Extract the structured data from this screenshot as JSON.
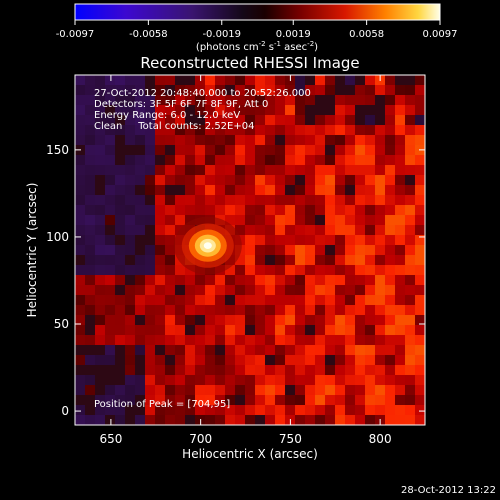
{
  "chart_data": {
    "type": "heatmap",
    "title": "Reconstructed RHESSI Image",
    "xlabel": "Heliocentric X (arcsec)",
    "ylabel": "Heliocentric Y (arcsec)",
    "xlim": [
      630,
      825
    ],
    "ylim": [
      -8,
      193
    ],
    "x_ticks": [
      "650",
      "700",
      "750",
      "800"
    ],
    "y_ticks": [
      "0",
      "50",
      "100",
      "150"
    ],
    "x_tick_values": [
      650,
      700,
      750,
      800
    ],
    "y_tick_values": [
      0,
      50,
      100,
      150
    ],
    "colorbar": {
      "range": [
        -0.0097,
        0.0097
      ],
      "ticks": [
        "-0.0097",
        "-0.0058",
        "-0.0019",
        "0.0019",
        "0.0058",
        "0.0097"
      ],
      "tick_values": [
        -0.0097,
        -0.0058,
        -0.0019,
        0.0019,
        0.0058,
        0.0097
      ],
      "unit_label": {
        "prefix": "(photons cm",
        "exp1": "-2",
        "mid": " s",
        "exp2": "-1",
        "mid2": " asec",
        "exp3": "-2",
        "suffix": ")"
      },
      "colors": [
        "#0000ff",
        "#5500c0",
        "#28104a",
        "#000000",
        "#6a0000",
        "#d01000",
        "#ff7a00",
        "#ffd040",
        "#ffffe0"
      ]
    },
    "annotations": [
      "27-Oct-2012 20:48:40.000 to 20:52:26.000",
      "Detectors: 3F 5F 6F 7F 8F 9F, Att 0",
      "Energy Range: 6.0 - 12.0 keV",
      "Clean     Total counts: 2.52E+04"
    ],
    "peak_label": "Position of Peak = [704,95]",
    "peak": {
      "x": 704,
      "y": 95,
      "value": 0.0097
    },
    "grid": false
  },
  "footer_timestamp": "28-Oct-2012 13:22"
}
